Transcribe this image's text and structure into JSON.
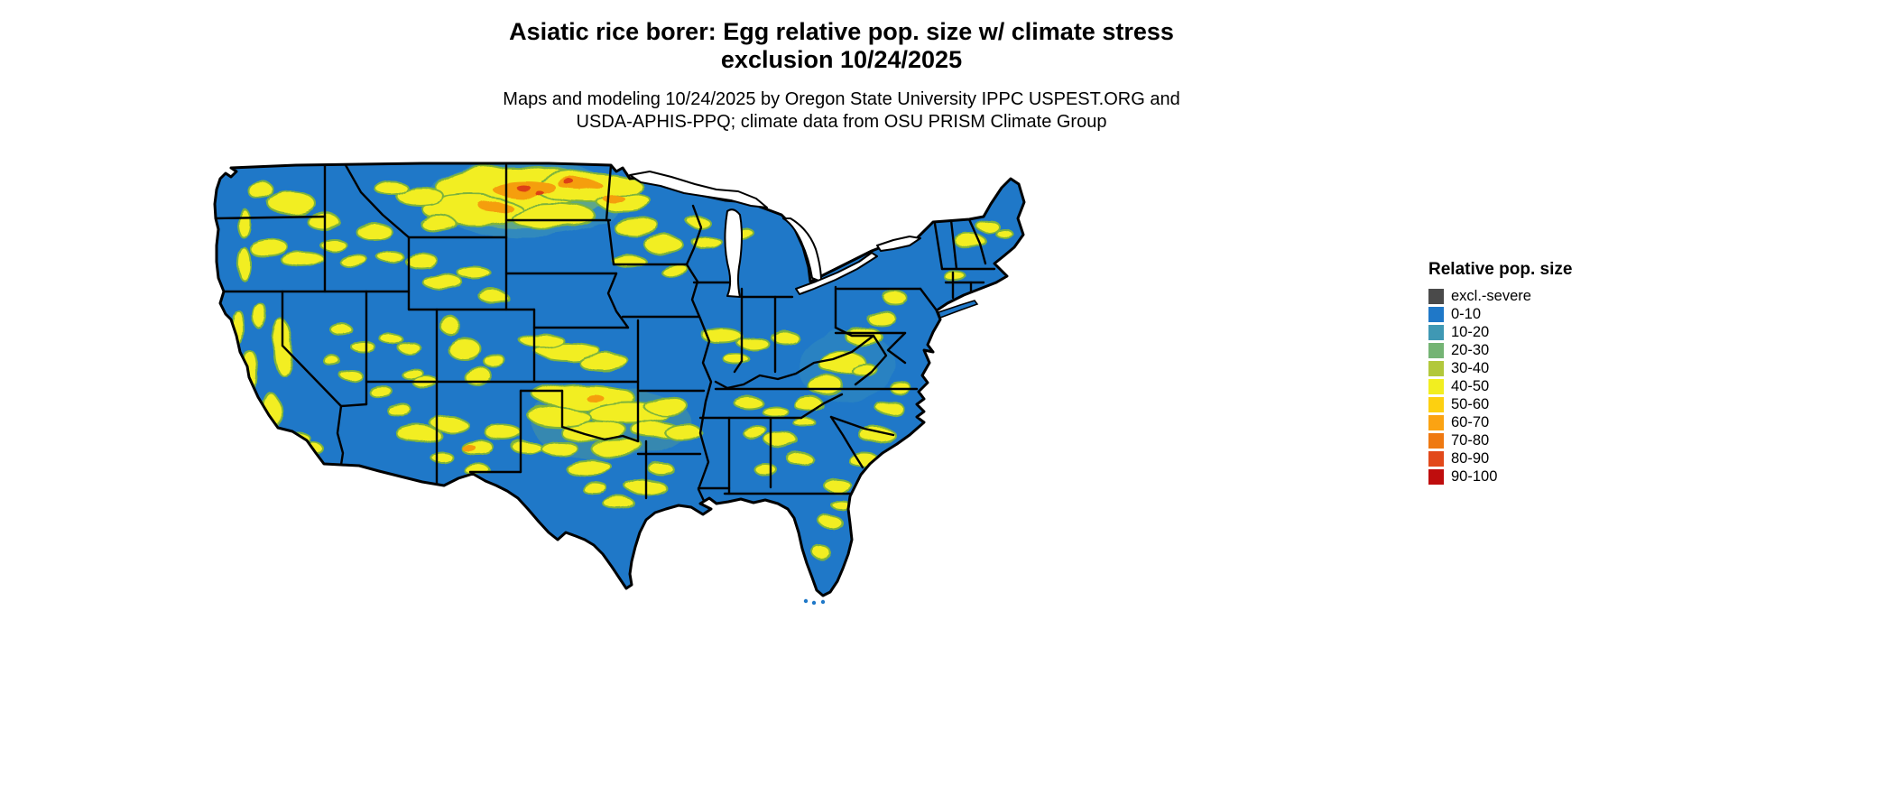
{
  "header": {
    "title_line1": "Asiatic rice borer: Egg relative pop. size w/ climate stress",
    "title_line2": "exclusion 10/24/2025",
    "subtitle_line1": "Maps and modeling 10/24/2025 by Oregon State University IPPC USPEST.ORG and",
    "subtitle_line2": "USDA-APHIS-PPQ; climate data from OSU PRISM Climate Group"
  },
  "legend": {
    "title": "Relative pop. size",
    "items": [
      {
        "label": "excl.-severe",
        "color": "#4a4a4a"
      },
      {
        "label": "0-10",
        "color": "#1f78c8"
      },
      {
        "label": "10-20",
        "color": "#3f98b4"
      },
      {
        "label": "20-30",
        "color": "#74b474"
      },
      {
        "label": "30-40",
        "color": "#b2c83c"
      },
      {
        "label": "40-50",
        "color": "#f2ee20"
      },
      {
        "label": "50-60",
        "color": "#fdd010"
      },
      {
        "label": "60-70",
        "color": "#fba312"
      },
      {
        "label": "70-80",
        "color": "#ef7911"
      },
      {
        "label": "80-90",
        "color": "#e2491b"
      },
      {
        "label": "90-100",
        "color": "#bf0d0d"
      }
    ]
  },
  "map": {
    "region": "Conterminous United States",
    "background_color": "#ffffff",
    "border_color": "#000000"
  }
}
